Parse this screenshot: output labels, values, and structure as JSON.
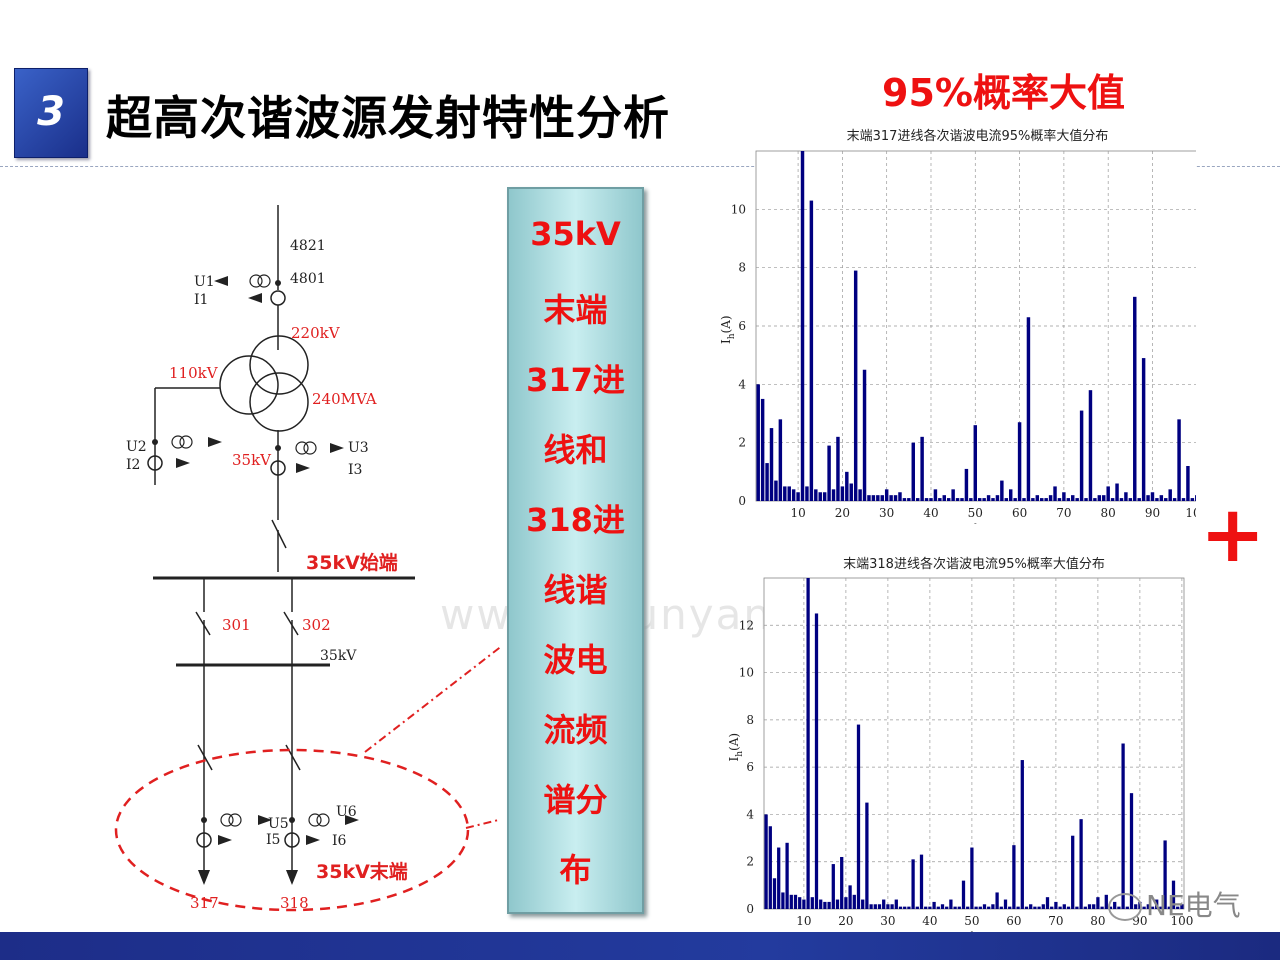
{
  "header": {
    "section_number": "3",
    "title": "超高次谐波源发射特性分析"
  },
  "red_title": "95%概率大值",
  "plus_sign": "+",
  "banner_lines": [
    "35kV",
    "末端",
    "317进",
    "线和",
    "318进",
    "线谐",
    "波电",
    "流频",
    "谱分",
    "布"
  ],
  "watermark": "www.hidunyan.com",
  "wechat_label": "NE电气",
  "diagram": {
    "labels": {
      "n4821": "4821",
      "n4801": "4801",
      "u1": "U1",
      "i1": "I1",
      "kv220": "220kV",
      "kv110": "110kV",
      "mva": "240MVA",
      "u2": "U2",
      "i2": "I2",
      "kv35a": "35kV",
      "u3": "U3",
      "i3": "I3",
      "start": "35kV始端",
      "b301": "301",
      "b302": "302",
      "kv35b": "35kV",
      "u5": "U5",
      "i5": "I5",
      "u6": "U6",
      "i6": "I6",
      "end": "35kV末端",
      "f317": "317",
      "f318": "318"
    }
  },
  "chart_data": [
    {
      "type": "bar",
      "title": "末端317进线各次谐波电流95%概率大值分布",
      "xlabel": "h",
      "ylabel": "I_h (A)",
      "ylabel_main": "I",
      "ylabel_sub": "h",
      "ylabel_tail": "(A)",
      "xlim": [
        1,
        100
      ],
      "ylim": [
        0,
        12
      ],
      "xticks": [
        10,
        20,
        30,
        40,
        50,
        60,
        70,
        80,
        90,
        100
      ],
      "yticks": [
        0,
        2,
        4,
        6,
        8,
        10
      ],
      "grid": true,
      "color": "#000080",
      "x": [
        1,
        2,
        3,
        4,
        5,
        6,
        7,
        8,
        9,
        10,
        11,
        12,
        13,
        14,
        15,
        16,
        17,
        18,
        19,
        20,
        21,
        22,
        23,
        24,
        25,
        26,
        27,
        28,
        29,
        30,
        31,
        32,
        33,
        34,
        35,
        36,
        37,
        38,
        39,
        40,
        41,
        42,
        43,
        44,
        45,
        46,
        47,
        48,
        49,
        50,
        51,
        52,
        53,
        54,
        55,
        56,
        57,
        58,
        59,
        60,
        61,
        62,
        63,
        64,
        65,
        66,
        67,
        68,
        69,
        70,
        71,
        72,
        73,
        74,
        75,
        76,
        77,
        78,
        79,
        80,
        81,
        82,
        83,
        84,
        85,
        86,
        87,
        88,
        89,
        90,
        91,
        92,
        93,
        94,
        95,
        96,
        97,
        98,
        99,
        100
      ],
      "values": [
        4.0,
        3.5,
        1.3,
        2.5,
        0.7,
        2.8,
        0.5,
        0.5,
        0.4,
        0.3,
        12.0,
        0.5,
        10.3,
        0.4,
        0.3,
        0.3,
        1.9,
        0.4,
        2.2,
        0.5,
        1.0,
        0.6,
        7.9,
        0.4,
        4.5,
        0.2,
        0.2,
        0.2,
        0.2,
        0.4,
        0.2,
        0.2,
        0.3,
        0.1,
        0.1,
        2.0,
        0.1,
        2.2,
        0.1,
        0.1,
        0.4,
        0.1,
        0.2,
        0.1,
        0.4,
        0.1,
        0.1,
        1.1,
        0.1,
        2.6,
        0.1,
        0.1,
        0.2,
        0.1,
        0.2,
        0.7,
        0.1,
        0.4,
        0.1,
        2.7,
        0.1,
        6.3,
        0.1,
        0.2,
        0.1,
        0.1,
        0.2,
        0.5,
        0.1,
        0.3,
        0.1,
        0.2,
        0.1,
        3.1,
        0.1,
        3.8,
        0.1,
        0.2,
        0.2,
        0.5,
        0.1,
        0.6,
        0.1,
        0.3,
        0.1,
        7.0,
        0.1,
        4.9,
        0.2,
        0.3,
        0.1,
        0.2,
        0.1,
        0.4,
        0.1,
        2.8,
        0.1,
        1.2,
        0.1,
        0.2
      ]
    },
    {
      "type": "bar",
      "title": "末端318进线各次谐波电流95%概率大值分布",
      "xlabel": "h",
      "ylabel": "I_h (A)",
      "ylabel_main": "I",
      "ylabel_sub": "h",
      "ylabel_tail": "(A)",
      "xlim": [
        1,
        100
      ],
      "ylim": [
        0,
        14
      ],
      "xticks": [
        10,
        20,
        30,
        40,
        50,
        60,
        70,
        80,
        90,
        100
      ],
      "yticks": [
        0,
        2,
        4,
        6,
        8,
        10,
        12
      ],
      "grid": true,
      "color": "#000080",
      "x": [
        1,
        2,
        3,
        4,
        5,
        6,
        7,
        8,
        9,
        10,
        11,
        12,
        13,
        14,
        15,
        16,
        17,
        18,
        19,
        20,
        21,
        22,
        23,
        24,
        25,
        26,
        27,
        28,
        29,
        30,
        31,
        32,
        33,
        34,
        35,
        36,
        37,
        38,
        39,
        40,
        41,
        42,
        43,
        44,
        45,
        46,
        47,
        48,
        49,
        50,
        51,
        52,
        53,
        54,
        55,
        56,
        57,
        58,
        59,
        60,
        61,
        62,
        63,
        64,
        65,
        66,
        67,
        68,
        69,
        70,
        71,
        72,
        73,
        74,
        75,
        76,
        77,
        78,
        79,
        80,
        81,
        82,
        83,
        84,
        85,
        86,
        87,
        88,
        89,
        90,
        91,
        92,
        93,
        94,
        95,
        96,
        97,
        98,
        99,
        100
      ],
      "values": [
        4.0,
        3.5,
        1.3,
        2.6,
        0.7,
        2.8,
        0.6,
        0.6,
        0.5,
        0.4,
        14.0,
        0.5,
        12.5,
        0.4,
        0.3,
        0.3,
        1.9,
        0.4,
        2.2,
        0.5,
        1.0,
        0.6,
        7.8,
        0.4,
        4.5,
        0.2,
        0.2,
        0.2,
        0.4,
        0.2,
        0.2,
        0.4,
        0.1,
        0.1,
        0.1,
        2.1,
        0.1,
        2.3,
        0.1,
        0.1,
        0.3,
        0.1,
        0.2,
        0.1,
        0.4,
        0.1,
        0.1,
        1.2,
        0.1,
        2.6,
        0.1,
        0.1,
        0.2,
        0.1,
        0.2,
        0.7,
        0.1,
        0.4,
        0.1,
        2.7,
        0.1,
        6.3,
        0.1,
        0.2,
        0.1,
        0.1,
        0.2,
        0.5,
        0.1,
        0.3,
        0.1,
        0.2,
        0.1,
        3.1,
        0.1,
        3.8,
        0.1,
        0.2,
        0.2,
        0.5,
        0.1,
        0.6,
        0.1,
        0.3,
        0.1,
        7.0,
        0.1,
        4.9,
        0.2,
        0.3,
        0.1,
        0.2,
        0.1,
        0.4,
        0.1,
        2.9,
        0.1,
        1.2,
        0.1,
        0.2
      ]
    }
  ]
}
